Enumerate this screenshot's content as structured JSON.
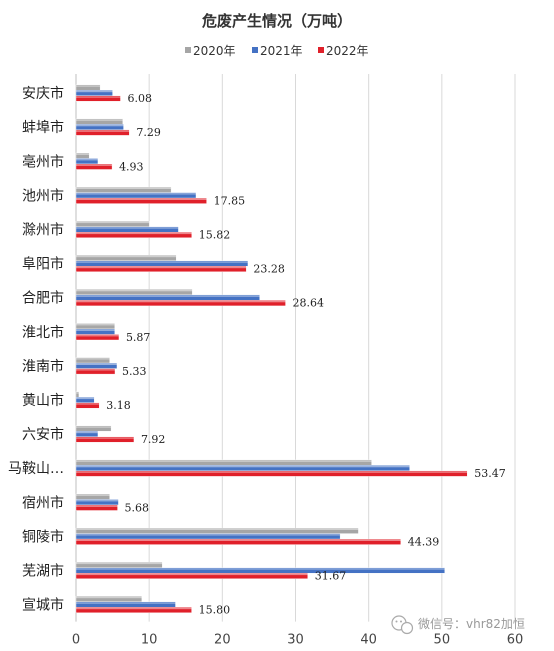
{
  "chart_data": {
    "type": "bar",
    "orientation": "horizontal",
    "title": "危废产生情况（万吨）",
    "legend_position": "top",
    "categories": [
      "安庆市",
      "蚌埠市",
      "亳州市",
      "池州市",
      "滁州市",
      "阜阳市",
      "合肥市",
      "淮北市",
      "淮南市",
      "黄山市",
      "六安市",
      "马鞍山…",
      "宿州市",
      "铜陵市",
      "芜湖市",
      "宣城市"
    ],
    "series": [
      {
        "name": "2020年",
        "color": "#a6a6a6",
        "values": [
          3.3,
          6.4,
          1.8,
          13.0,
          10.0,
          13.7,
          15.9,
          5.3,
          4.6,
          0.4,
          4.8,
          40.4,
          4.6,
          38.6,
          11.8,
          9.0
        ]
      },
      {
        "name": "2021年",
        "color": "#4472c4",
        "values": [
          5.0,
          6.5,
          3.0,
          16.4,
          14.0,
          23.5,
          25.1,
          5.3,
          5.6,
          2.5,
          3.0,
          45.6,
          5.8,
          36.1,
          50.4,
          13.6
        ]
      },
      {
        "name": "2022年",
        "color": "#e0202a",
        "values": [
          6.08,
          7.29,
          4.93,
          17.85,
          15.82,
          23.28,
          28.64,
          5.87,
          5.33,
          3.18,
          7.92,
          53.47,
          5.68,
          44.39,
          31.67,
          15.8
        ]
      }
    ],
    "data_labels": [
      "6.08",
      "7.29",
      "4.93",
      "17.85",
      "15.82",
      "23.28",
      "28.64",
      "5.87",
      "5.33",
      "3.18",
      "7.92",
      "53.47",
      "5.68",
      "44.39",
      "31.67",
      "15.80"
    ],
    "xlim": [
      0,
      60
    ],
    "xticks": [
      "0",
      "10",
      "20",
      "30",
      "40",
      "50",
      "60"
    ],
    "grid": true
  },
  "watermark": {
    "text": "微信号：vhr82加恒",
    "icon": "wechat-icon"
  }
}
